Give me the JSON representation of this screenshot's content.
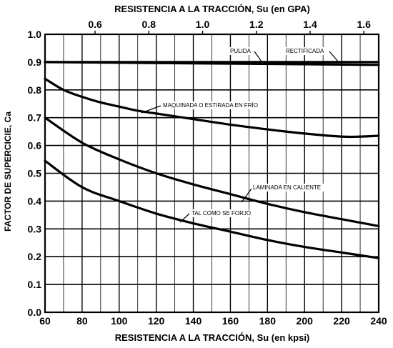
{
  "chart_data": {
    "type": "line",
    "xlabel": "RESISTENCIA A LA TRACCIÓN, Su (en kpsi)",
    "x2label": "RESISTENCIA A LA TRACCIÓN, Su (en GPA)",
    "ylabel": "FACTOR DE SUPERCICIE, Ca",
    "xlim": [
      60,
      240
    ],
    "ylim": [
      0.0,
      1.0
    ],
    "xticks": [
      "60",
      "80",
      "100",
      "120",
      "140",
      "160",
      "180",
      "200",
      "220",
      "240"
    ],
    "x2ticks": [
      "0.6",
      "0.8",
      "1.0",
      "1.2",
      "1.4",
      "1.6"
    ],
    "x2tick_values_kpsi": [
      87.0,
      116.0,
      145.0,
      174.0,
      203.0,
      232.0
    ],
    "yticks": [
      "0.0",
      "0.1",
      "0.2",
      "0.3",
      "0.4",
      "0.5",
      "0.6",
      "0.7",
      "0.8",
      "0.9",
      "1.0"
    ],
    "grid": true,
    "series": [
      {
        "name": "PULIDA",
        "x": [
          60,
          240
        ],
        "y": [
          0.9,
          0.9
        ]
      },
      {
        "name": "RECTIFICADA",
        "x": [
          60,
          240
        ],
        "y": [
          0.9,
          0.89
        ]
      },
      {
        "name": "MAQUINADA O ESTIRADA EN FRÍO",
        "x": [
          60,
          70,
          80,
          90,
          100,
          110,
          120,
          140,
          160,
          180,
          200,
          220,
          230,
          240
        ],
        "y": [
          0.84,
          0.8,
          0.775,
          0.755,
          0.74,
          0.725,
          0.715,
          0.695,
          0.675,
          0.658,
          0.643,
          0.632,
          0.632,
          0.635
        ]
      },
      {
        "name": "LAMINADA EN CALIENTE",
        "x": [
          60,
          80,
          100,
          120,
          140,
          160,
          180,
          200,
          220,
          240
        ],
        "y": [
          0.7,
          0.61,
          0.55,
          0.5,
          0.46,
          0.425,
          0.39,
          0.36,
          0.335,
          0.31
        ]
      },
      {
        "name": "TAL COMO SE FORJÓ",
        "x": [
          60,
          80,
          100,
          120,
          140,
          160,
          180,
          200,
          220,
          240
        ],
        "y": [
          0.545,
          0.45,
          0.4,
          0.355,
          0.32,
          0.29,
          0.26,
          0.235,
          0.215,
          0.195
        ]
      }
    ],
    "annotations": [
      {
        "text": "PULIDA",
        "series": "PULIDA"
      },
      {
        "text": "RECTIFICADA",
        "series": "RECTIFICADA"
      },
      {
        "text": "MAQUINADA O ESTIRADA EN FRÍO",
        "series": "MAQUINADA O ESTIRADA EN FRÍO"
      },
      {
        "text": "LAMINADA EN CALIENTE",
        "series": "LAMINADA EN CALIENTE"
      },
      {
        "text": "TAL COMO SE FORJÓ",
        "series": "TAL COMO SE FORJÓ"
      }
    ]
  }
}
